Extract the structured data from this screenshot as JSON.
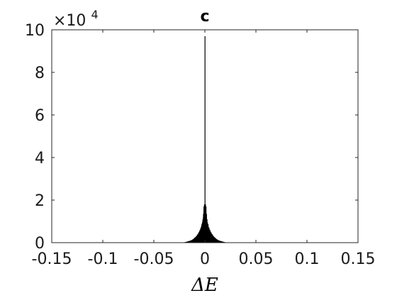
{
  "chart_data": {
    "type": "bar",
    "title": "c",
    "xlabel": "ΔE",
    "ylabel": "",
    "xlim": [
      -0.15,
      0.15
    ],
    "ylim": [
      0,
      100000
    ],
    "y_multiplier_base": "×10",
    "y_multiplier_exp": "4",
    "x_ticks": [
      -0.15,
      -0.1,
      -0.05,
      0,
      0.05,
      0.1,
      0.15
    ],
    "x_tick_labels": [
      "-0.15",
      "-0.1",
      "-0.05",
      "0",
      "0.05",
      "0.1",
      "0.15"
    ],
    "y_ticks": [
      0,
      20000,
      40000,
      60000,
      80000,
      100000
    ],
    "y_tick_labels": [
      "0",
      "2",
      "4",
      "6",
      "8",
      "10"
    ],
    "grid": false,
    "bar_color": "#000000",
    "x": [
      -0.02,
      -0.018,
      -0.016,
      -0.014,
      -0.012,
      -0.01,
      -0.008,
      -0.007,
      -0.006,
      -0.005,
      -0.004,
      -0.003,
      -0.002,
      -0.0015,
      -0.001,
      -0.0005,
      0,
      0.0005,
      0.001,
      0.0015,
      0.002,
      0.003,
      0.004,
      0.005,
      0.006,
      0.007,
      0.008,
      0.01,
      0.012,
      0.014,
      0.016,
      0.018,
      0.02
    ],
    "values": [
      200,
      400,
      700,
      1000,
      1500,
      2300,
      3300,
      4000,
      4800,
      5800,
      7000,
      8800,
      11000,
      13500,
      17000,
      18000,
      97000,
      18000,
      17000,
      13500,
      11000,
      8800,
      7000,
      5800,
      4800,
      4000,
      3300,
      2300,
      1500,
      1000,
      700,
      400,
      200
    ]
  }
}
